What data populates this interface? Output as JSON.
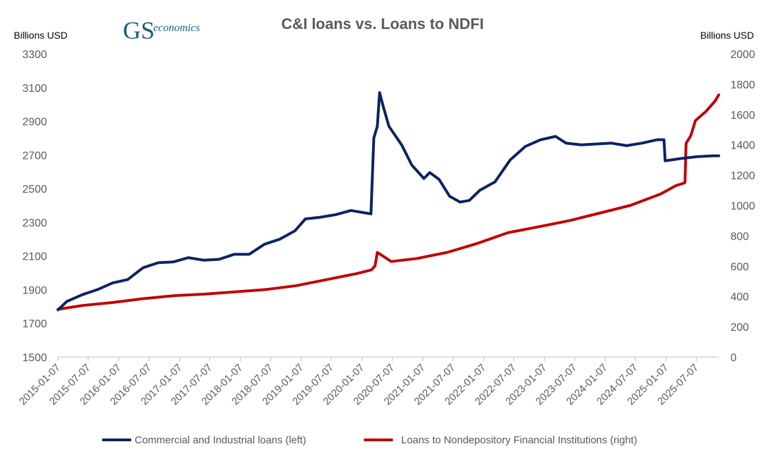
{
  "logo": {
    "mark": "GS",
    "text": "economics"
  },
  "colors": {
    "cil": "#0b2361",
    "ndfi": "#c00000",
    "logo": "#1d5b7a",
    "axis": "#bfbfbf",
    "text": "#595959"
  },
  "chart_data": {
    "type": "line",
    "title": "C&I loans vs. Loans to NDFI",
    "ylabel_left": "Billions USD",
    "ylabel_right": "Billions USD",
    "ylim_left": [
      1500,
      3300
    ],
    "ylim_right": [
      0,
      2000
    ],
    "yticks_left": [
      "3300",
      "3100",
      "2900",
      "2700",
      "2500",
      "2300",
      "2100",
      "1900",
      "1700",
      "1500"
    ],
    "yticks_right": [
      "2000",
      "1800",
      "1600",
      "1400",
      "1200",
      "1000",
      "800",
      "600",
      "400",
      "200",
      "0"
    ],
    "xticks": [
      "2015-01-07",
      "2015-07-07",
      "2016-01-07",
      "2016-07-07",
      "2017-01-07",
      "2017-07-07",
      "2018-01-07",
      "2018-07-07",
      "2019-01-07",
      "2019-07-07",
      "2020-01-07",
      "2020-07-07",
      "2021-01-07",
      "2021-07-07",
      "2022-01-07",
      "2022-07-07",
      "2023-01-07",
      "2023-07-07",
      "2024-01-07",
      "2024-07-07",
      "2025-01-07",
      "2025-07-07"
    ],
    "legend_position": "bottom",
    "grid": false,
    "series": [
      {
        "name": "Commercial and Industrial loans (left)",
        "axis": "left",
        "points": [
          [
            "2015-01-07",
            1780
          ],
          [
            "2015-03-01",
            1830
          ],
          [
            "2015-06-01",
            1870
          ],
          [
            "2015-09-01",
            1900
          ],
          [
            "2015-12-01",
            1940
          ],
          [
            "2016-03-01",
            1960
          ],
          [
            "2016-06-01",
            2030
          ],
          [
            "2016-09-01",
            2060
          ],
          [
            "2016-12-01",
            2065
          ],
          [
            "2017-03-01",
            2090
          ],
          [
            "2017-06-01",
            2075
          ],
          [
            "2017-09-01",
            2080
          ],
          [
            "2017-12-01",
            2110
          ],
          [
            "2018-03-01",
            2110
          ],
          [
            "2018-06-01",
            2170
          ],
          [
            "2018-09-01",
            2200
          ],
          [
            "2018-12-01",
            2250
          ],
          [
            "2019-02-01",
            2320
          ],
          [
            "2019-05-01",
            2330
          ],
          [
            "2019-08-01",
            2345
          ],
          [
            "2019-11-01",
            2370
          ],
          [
            "2020-02-01",
            2355
          ],
          [
            "2020-03-01",
            2350
          ],
          [
            "2020-03-18",
            2800
          ],
          [
            "2020-04-08",
            2870
          ],
          [
            "2020-04-22",
            3070
          ],
          [
            "2020-05-13",
            2990
          ],
          [
            "2020-06-17",
            2870
          ],
          [
            "2020-09-01",
            2760
          ],
          [
            "2020-11-01",
            2640
          ],
          [
            "2021-01-13",
            2560
          ],
          [
            "2021-02-17",
            2595
          ],
          [
            "2021-04-14",
            2555
          ],
          [
            "2021-06-16",
            2455
          ],
          [
            "2021-08-18",
            2420
          ],
          [
            "2021-10-13",
            2430
          ],
          [
            "2021-12-15",
            2490
          ],
          [
            "2022-03-16",
            2540
          ],
          [
            "2022-06-15",
            2670
          ],
          [
            "2022-09-14",
            2750
          ],
          [
            "2022-12-14",
            2790
          ],
          [
            "2023-03-15",
            2810
          ],
          [
            "2023-05-17",
            2770
          ],
          [
            "2023-08-16",
            2760
          ],
          [
            "2023-11-15",
            2765
          ],
          [
            "2024-02-14",
            2770
          ],
          [
            "2024-05-15",
            2755
          ],
          [
            "2024-08-14",
            2770
          ],
          [
            "2024-11-13",
            2790
          ],
          [
            "2024-12-25",
            2790
          ],
          [
            "2025-01-01",
            2665
          ],
          [
            "2025-04-16",
            2680
          ],
          [
            "2025-07-16",
            2690
          ],
          [
            "2025-10-15",
            2695
          ],
          [
            "2025-11-19",
            2695
          ]
        ]
      },
      {
        "name": "Loans to Nondepository Financial Institutions (right)",
        "axis": "right",
        "points": [
          [
            "2015-01-07",
            315
          ],
          [
            "2015-06-03",
            340
          ],
          [
            "2015-12-02",
            360
          ],
          [
            "2016-06-01",
            385
          ],
          [
            "2016-12-07",
            405
          ],
          [
            "2017-06-07",
            415
          ],
          [
            "2017-12-06",
            430
          ],
          [
            "2018-06-06",
            445
          ],
          [
            "2018-12-05",
            470
          ],
          [
            "2019-06-05",
            510
          ],
          [
            "2019-12-04",
            550
          ],
          [
            "2020-03-04",
            575
          ],
          [
            "2020-03-25",
            600
          ],
          [
            "2020-04-08",
            690
          ],
          [
            "2020-05-20",
            660
          ],
          [
            "2020-07-01",
            630
          ],
          [
            "2020-12-02",
            650
          ],
          [
            "2021-06-02",
            690
          ],
          [
            "2021-12-01",
            750
          ],
          [
            "2022-06-01",
            820
          ],
          [
            "2022-12-07",
            860
          ],
          [
            "2023-06-07",
            900
          ],
          [
            "2023-12-06",
            950
          ],
          [
            "2024-06-05",
            1000
          ],
          [
            "2024-12-04",
            1075
          ],
          [
            "2025-03-05",
            1130
          ],
          [
            "2025-04-30",
            1150
          ],
          [
            "2025-05-07",
            1410
          ],
          [
            "2025-06-04",
            1460
          ],
          [
            "2025-07-02",
            1560
          ],
          [
            "2025-09-03",
            1620
          ],
          [
            "2025-10-29",
            1690
          ],
          [
            "2025-11-19",
            1730
          ]
        ]
      }
    ]
  }
}
